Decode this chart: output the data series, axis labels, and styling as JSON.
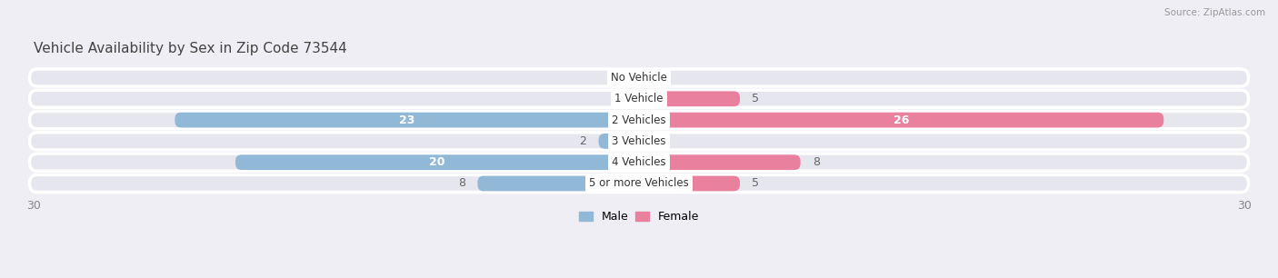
{
  "title": "Vehicle Availability by Sex in Zip Code 73544",
  "source": "Source: ZipAtlas.com",
  "categories": [
    "No Vehicle",
    "1 Vehicle",
    "2 Vehicles",
    "3 Vehicles",
    "4 Vehicles",
    "5 or more Vehicles"
  ],
  "male_values": [
    0,
    0,
    23,
    2,
    20,
    8
  ],
  "female_values": [
    0,
    5,
    26,
    0,
    8,
    5
  ],
  "male_color": "#92b8d8",
  "female_color": "#e8809e",
  "male_color_light": "#b8d0e8",
  "female_color_light": "#f0a8c0",
  "male_label": "Male",
  "female_label": "Female",
  "xlim": 30,
  "bg_color": "#eeeef4",
  "row_color": "#e8e8f0",
  "row_border": "#ffffff",
  "title_color": "#444444",
  "source_color": "#999999",
  "tick_color": "#888888",
  "value_color_outside": "#666666",
  "value_color_inside": "#ffffff"
}
